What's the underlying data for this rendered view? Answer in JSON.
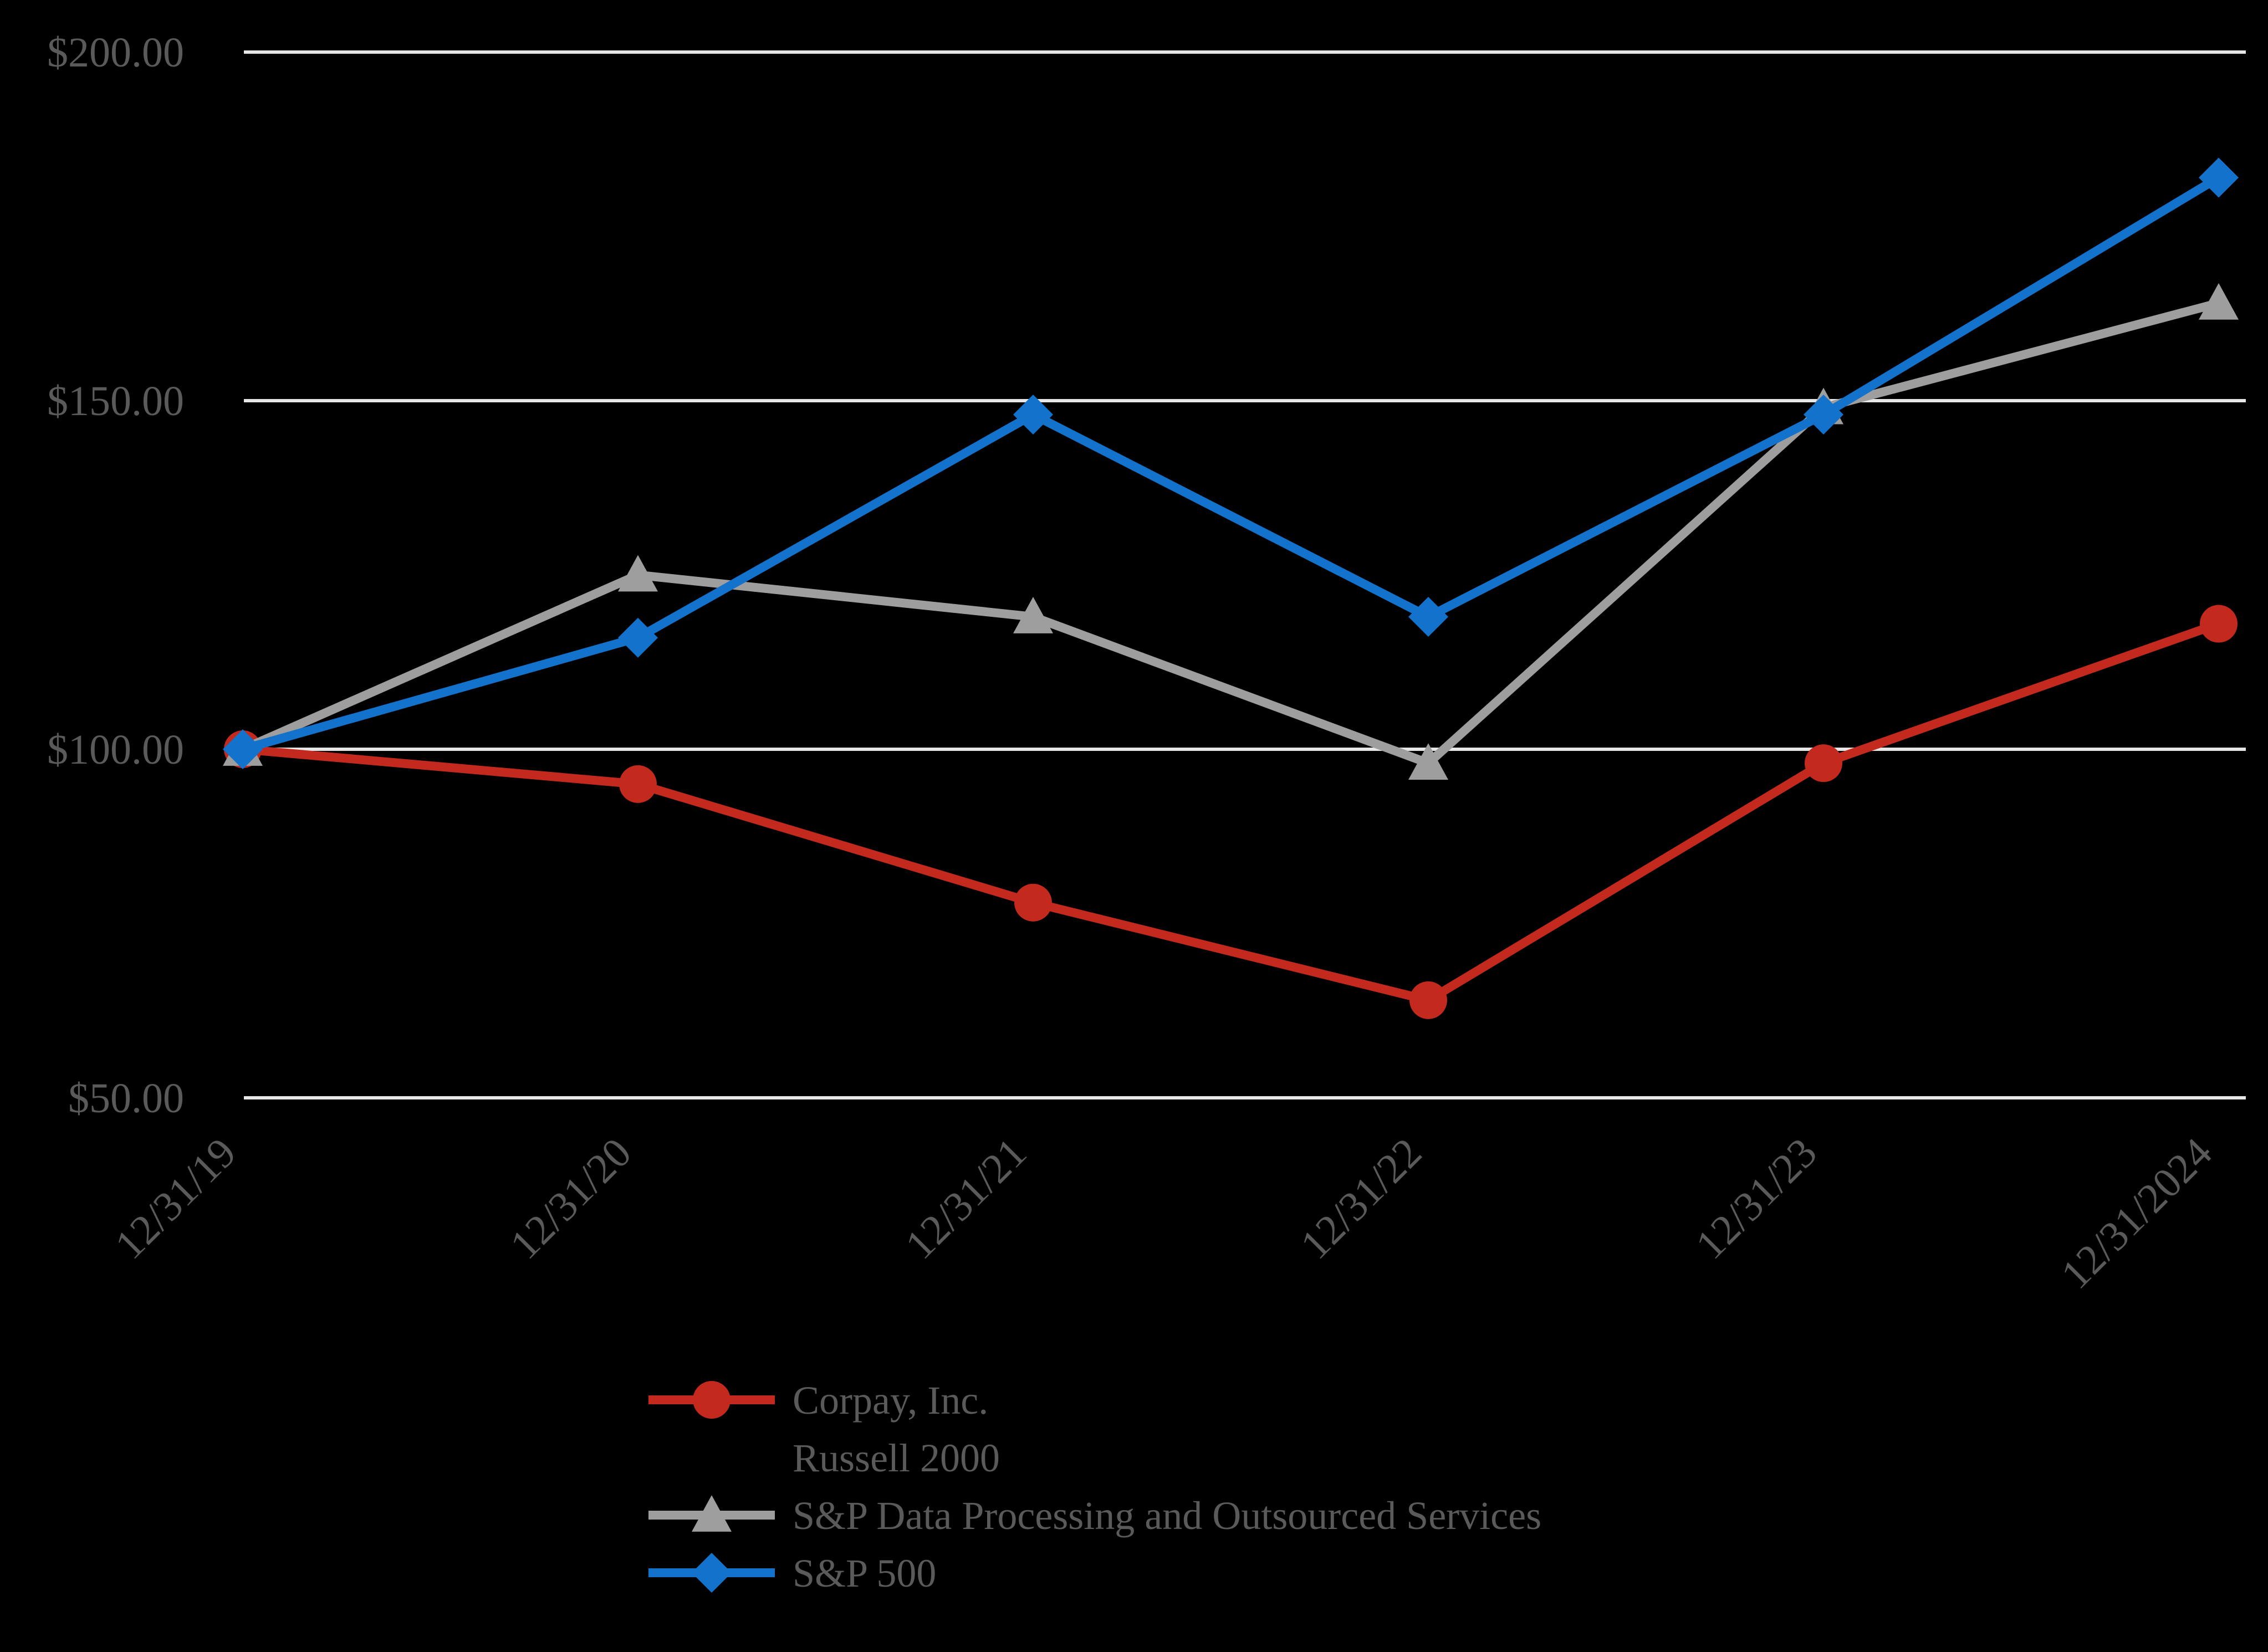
{
  "chart_data": {
    "type": "line",
    "title": "",
    "x_categories": [
      "12/31/19",
      "12/31/20",
      "12/31/21",
      "12/31/22",
      "12/31/23",
      "12/31/2024"
    ],
    "y_axis_ticks": [
      {
        "label": "$200.00",
        "value": 200
      },
      {
        "label": "$150.00",
        "value": 150
      },
      {
        "label": "$100.00",
        "value": 100
      },
      {
        "label": "$50.00",
        "value": 50
      }
    ],
    "ylim": [
      50,
      200
    ],
    "grid": "horizontal-only",
    "legend_position": "bottom-left-of-center",
    "background_color": "#000000",
    "gridline_color": "#E6E6E6",
    "tick_text_color": "#5A5A5A",
    "legend_text_color": "#5A5A5A",
    "series": [
      {
        "name": "Corpay, Inc.",
        "color": "#C3291C",
        "marker": "circle",
        "values": [
          100,
          95,
          78,
          64,
          98,
          118
        ],
        "visible_in_plot": true
      },
      {
        "name": "Russell 2000",
        "color": null,
        "marker": "none",
        "values": null,
        "visible_in_plot": false
      },
      {
        "name": "S&P Data Processing and Outsourced Services",
        "color": "#9E9E9E",
        "marker": "triangle",
        "values": [
          100,
          125,
          119,
          98,
          149,
          164
        ],
        "visible_in_plot": true
      },
      {
        "name": "S&P 500",
        "color": "#1272CC",
        "marker": "diamond",
        "values": [
          100,
          116,
          148,
          119,
          148,
          182
        ],
        "visible_in_plot": true
      }
    ]
  }
}
